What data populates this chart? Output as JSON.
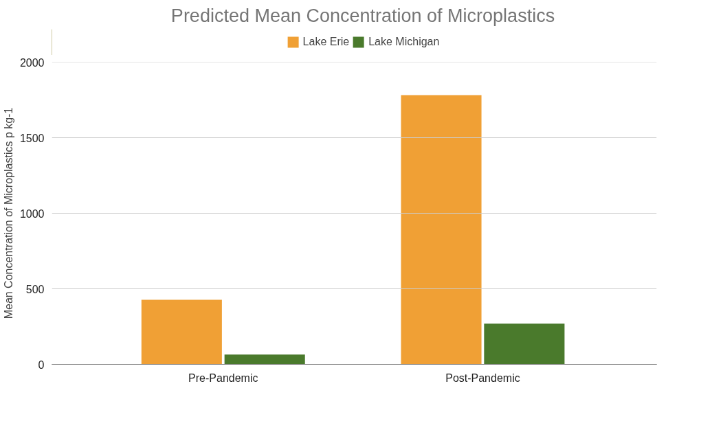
{
  "chart_data": {
    "type": "bar",
    "title": "Predicted Mean Concentration of Microplastics",
    "ylabel": "Mean Concentration of Microplastics p kg-1",
    "categories": [
      "Pre-Pandemic",
      "Post-Pandemic"
    ],
    "series": [
      {
        "name": "Lake Erie",
        "color": "#f0a035",
        "values": [
          427,
          1782
        ]
      },
      {
        "name": "Lake Michigan",
        "color": "#4a7a2c",
        "values": [
          65,
          269
        ]
      }
    ],
    "ylim": [
      0,
      2000
    ],
    "yticks": [
      0,
      500,
      1000,
      1500,
      2000
    ],
    "grid": "y",
    "legend": "top"
  }
}
